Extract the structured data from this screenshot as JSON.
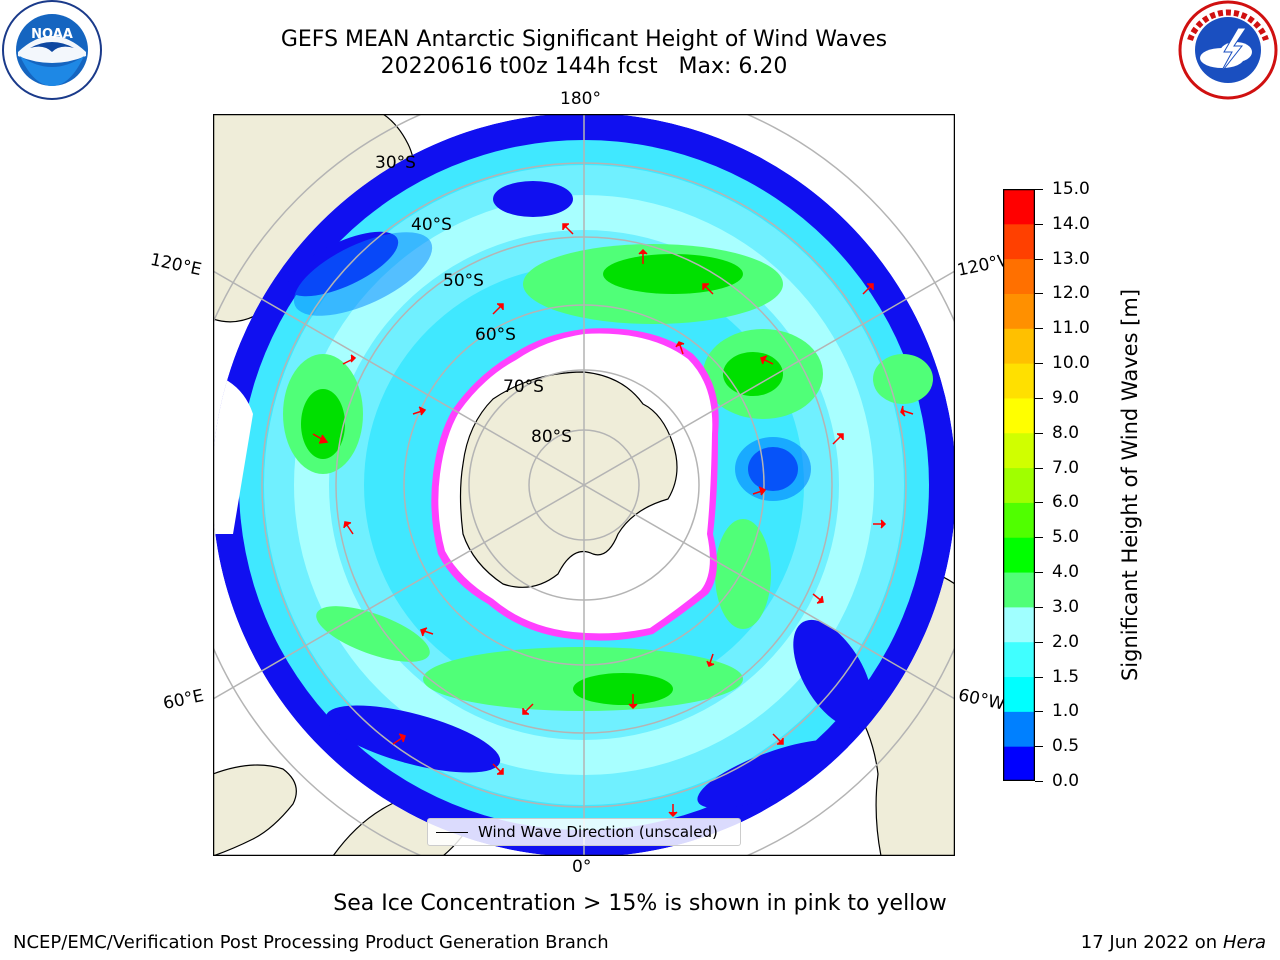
{
  "title": {
    "line1": "GEFS MEAN Antarctic Significant Height of Wind Waves",
    "line2": "20220616 t00z 144h fcst   Max: 6.20"
  },
  "logos": {
    "noaa": {
      "text": "NOAA",
      "ring_text": "NATIONAL OCEANIC AND ATMOSPHERIC ADMINISTRATION · U.S. DEPARTMENT OF COMMERCE"
    },
    "nws": {
      "ring_text": "NATIONAL WEATHER SERVICE"
    }
  },
  "map": {
    "projection": "south-polar-stereographic",
    "longitude_labels": {
      "top": "180°",
      "bottom": "0°",
      "left_upper": "120°E",
      "right_upper": "120°W",
      "left_lower": "60°E",
      "right_lower": "60°W"
    },
    "latitude_labels": [
      "30°S",
      "40°S",
      "50°S",
      "60°S",
      "70°S",
      "80°S"
    ],
    "legend_label": "Wind Wave Direction (unscaled)",
    "colors": {
      "land": "#efedd9",
      "ocean_missing": "#ffffff",
      "arrow": "#ff0000",
      "grid": "#b4b4b4",
      "ice_edge": [
        "#ff00ff",
        "#ffc000"
      ]
    }
  },
  "colorbar": {
    "label": "Significant Height of Wind Waves [m]",
    "ticks": [
      "0.0",
      "0.5",
      "1.0",
      "1.5",
      "2.0",
      "3.0",
      "4.0",
      "5.0",
      "6.0",
      "7.0",
      "8.0",
      "9.0",
      "10.0",
      "11.0",
      "12.0",
      "13.0",
      "14.0",
      "15.0"
    ],
    "colors": [
      "#0000ff",
      "#0080ff",
      "#00ffff",
      "#40ffff",
      "#a0ffff",
      "#50ff78",
      "#00ff00",
      "#50ff00",
      "#a0ff00",
      "#d0ff00",
      "#ffff00",
      "#ffe000",
      "#ffc000",
      "#ff9000",
      "#ff7000",
      "#ff4000",
      "#ff0000"
    ]
  },
  "note": "Sea Ice Concentration > 15% is shown in pink to yellow",
  "footer": {
    "left": "NCEP/EMC/Verification Post Processing Product Generation Branch",
    "right_date": "17 Jun 2022 on",
    "right_host": "Hera"
  }
}
